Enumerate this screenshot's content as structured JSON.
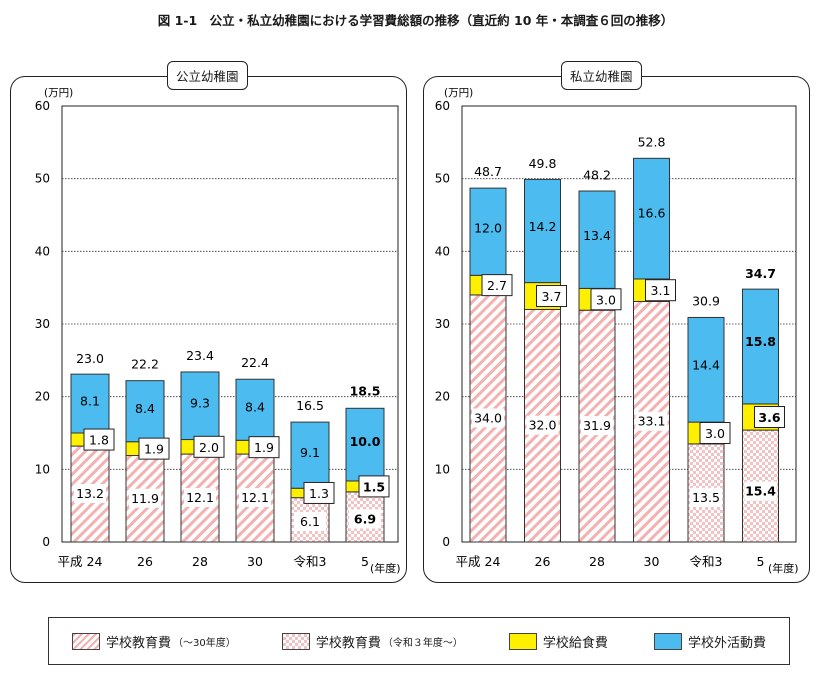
{
  "title": "図 1-1　公立・私立幼稚園における学習費総額の推移（直近約 10 年・本調査６回の推移）",
  "legend": {
    "items": [
      {
        "label": "学校教育費",
        "note": "（～30年度）"
      },
      {
        "label": "学校教育費",
        "note": "（令和３年度～）"
      },
      {
        "label": "学校給食費",
        "note": ""
      },
      {
        "label": "学校外活動費",
        "note": ""
      }
    ]
  },
  "colors": {
    "school_education_pattern": "#f3b1b1",
    "school_education_r3_pattern": "#f4c2c2",
    "school_lunch": "#fff000",
    "extracurricular": "#4cbcf0",
    "grid": "#333333"
  },
  "chart_data": [
    {
      "type": "bar",
      "stacked": true,
      "title": "公立幼稚園",
      "ylabel": "(万円)",
      "xlabel": "(年度)",
      "ylim": [
        0,
        60
      ],
      "yticks": [
        0,
        10,
        20,
        30,
        40,
        50,
        60
      ],
      "categories": [
        "平成 24",
        "26",
        "28",
        "30",
        "令和3",
        "5"
      ],
      "series": [
        {
          "name": "学校教育費",
          "values": [
            13.2,
            11.9,
            12.1,
            12.1,
            6.1,
            6.9
          ]
        },
        {
          "name": "学校給食費",
          "values": [
            1.8,
            1.9,
            2.0,
            1.9,
            1.3,
            1.5
          ]
        },
        {
          "name": "学校外活動費",
          "values": [
            8.1,
            8.4,
            9.3,
            8.4,
            9.1,
            10.0
          ]
        }
      ],
      "totals": [
        23.0,
        22.2,
        23.4,
        22.4,
        16.5,
        18.5
      ],
      "total_labels": [
        "23.0",
        "22.2",
        "23.4",
        "22.4",
        "16.5",
        "18.5"
      ],
      "segment_labels": [
        [
          "13.2",
          "11.9",
          "12.1",
          "12.1",
          "6.1",
          "6.9"
        ],
        [
          "1.8",
          "1.9",
          "2.0",
          "1.9",
          "1.3",
          "1.5"
        ],
        [
          "8.1",
          "8.4",
          "9.3",
          "8.4",
          "9.1",
          "10.0"
        ]
      ],
      "highlight_last": true,
      "grid": true
    },
    {
      "type": "bar",
      "stacked": true,
      "title": "私立幼稚園",
      "ylabel": "(万円)",
      "xlabel": "(年度)",
      "ylim": [
        0,
        60
      ],
      "yticks": [
        0,
        10,
        20,
        30,
        40,
        50,
        60
      ],
      "categories": [
        "平成 24",
        "26",
        "28",
        "30",
        "令和3",
        "5"
      ],
      "series": [
        {
          "name": "学校教育費",
          "values": [
            34.0,
            32.0,
            31.9,
            33.1,
            13.5,
            15.4
          ]
        },
        {
          "name": "学校給食費",
          "values": [
            2.7,
            3.7,
            3.0,
            3.1,
            3.0,
            3.6
          ]
        },
        {
          "name": "学校外活動費",
          "values": [
            12.0,
            14.2,
            13.4,
            16.6,
            14.4,
            15.8
          ]
        }
      ],
      "totals": [
        48.7,
        49.8,
        48.2,
        52.8,
        30.9,
        34.7
      ],
      "total_labels": [
        "48.7",
        "49.8",
        "48.2",
        "52.8",
        "30.9",
        "34.7"
      ],
      "segment_labels": [
        [
          "34.0",
          "32.0",
          "31.9",
          "33.1",
          "13.5",
          "15.4"
        ],
        [
          "2.7",
          "3.7",
          "3.0",
          "3.1",
          "3.0",
          "3.6"
        ],
        [
          "12.0",
          "14.2",
          "13.4",
          "16.6",
          "14.4",
          "15.8"
        ]
      ],
      "highlight_last": true,
      "grid": true
    }
  ]
}
